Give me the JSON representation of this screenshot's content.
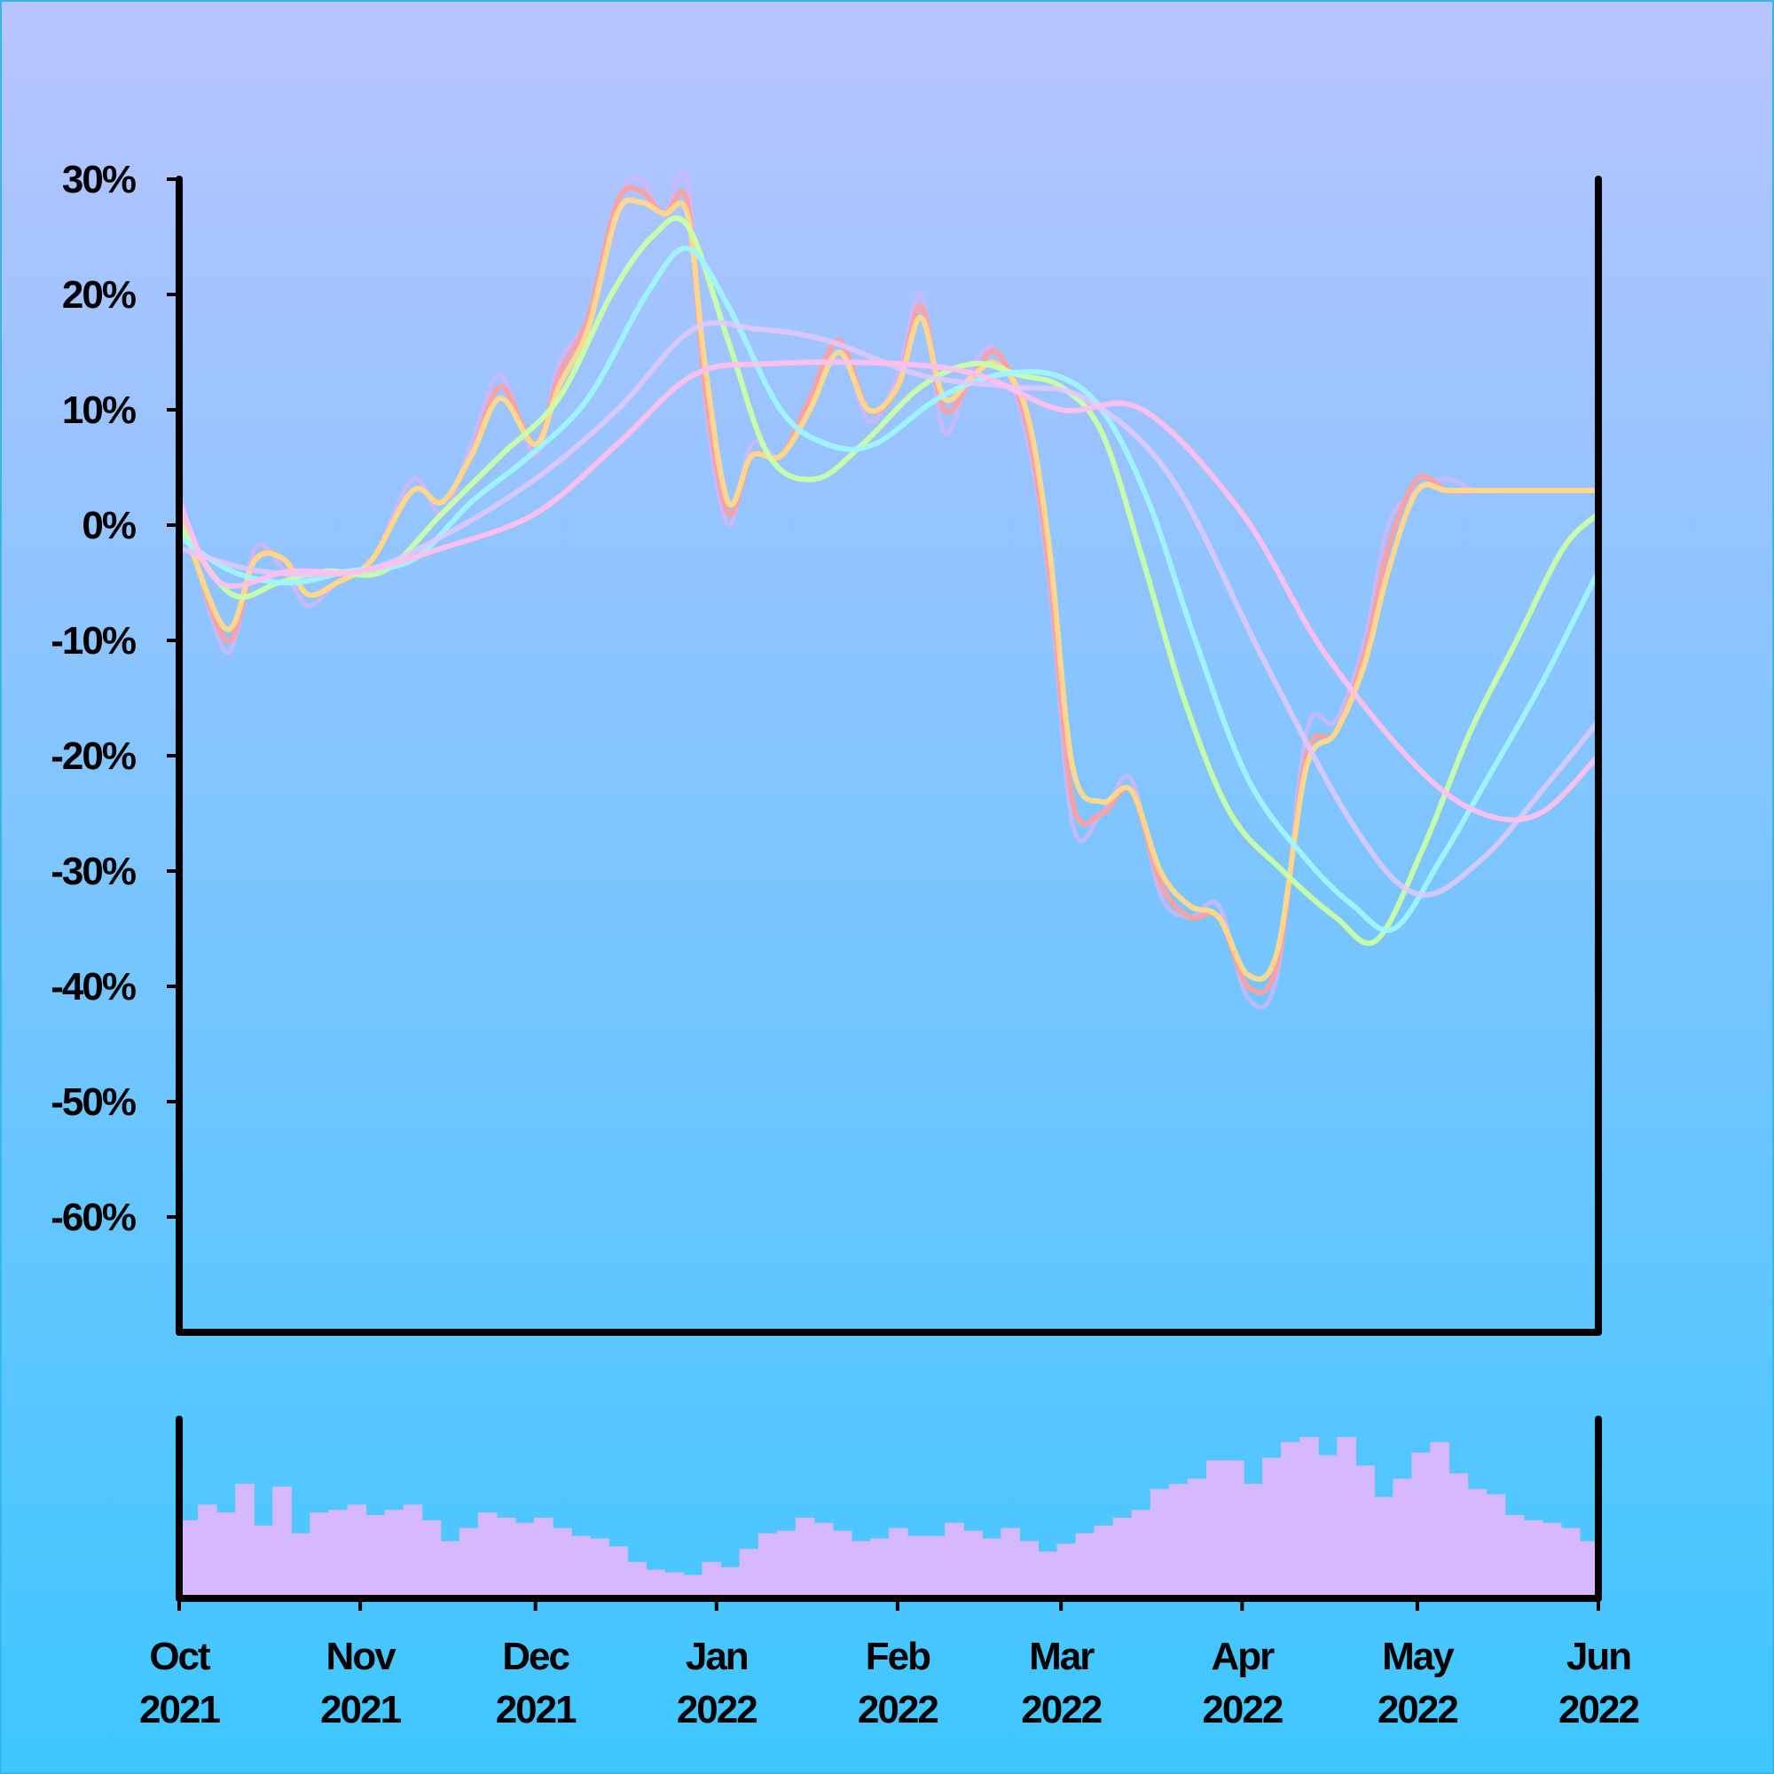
{
  "background": {
    "top_color": "#b8c4ff",
    "bottom_color": "#3ec6ff"
  },
  "chart_data": {
    "type": "line",
    "title": "",
    "xlabel": "",
    "ylabel": "",
    "grid": false,
    "legend": "none",
    "y_ticks": [
      "30%",
      "20%",
      "10%",
      "0%",
      "-10%",
      "-20%",
      "-30%",
      "-40%",
      "-50%",
      "-60%"
    ],
    "y_tick_values": [
      30,
      20,
      10,
      0,
      -10,
      -20,
      -30,
      -40,
      -50,
      -60
    ],
    "ylim": [
      -70,
      30
    ],
    "x_ticks": [
      {
        "date": "2021-10-01",
        "month": "Oct",
        "year": "2021"
      },
      {
        "date": "2021-11-01",
        "month": "Nov",
        "year": "2021"
      },
      {
        "date": "2021-12-01",
        "month": "Dec",
        "year": "2021"
      },
      {
        "date": "2022-01-01",
        "month": "Jan",
        "year": "2022"
      },
      {
        "date": "2022-02-01",
        "month": "Feb",
        "year": "2022"
      },
      {
        "date": "2022-03-01",
        "month": "Mar",
        "year": "2022"
      },
      {
        "date": "2022-04-01",
        "month": "Apr",
        "year": "2022"
      },
      {
        "date": "2022-05-01",
        "month": "May",
        "year": "2022"
      },
      {
        "date": "2022-06-01",
        "month": "Jun",
        "year": "2022"
      }
    ],
    "xlim": [
      "2021-10-01",
      "2022-06-01"
    ],
    "series": [
      {
        "color": "#d8b4ff",
        "opacity": 0.75,
        "width": 5,
        "x": [
          "2021-10-01",
          "2021-10-09",
          "2021-10-14",
          "2021-10-19",
          "2021-10-23",
          "2021-10-28",
          "2021-11-03",
          "2021-11-10",
          "2021-11-15",
          "2021-11-20",
          "2021-11-25",
          "2021-12-01",
          "2021-12-05",
          "2021-12-10",
          "2021-12-15",
          "2021-12-19",
          "2021-12-23",
          "2021-12-27",
          "2021-12-30",
          "2022-01-03",
          "2022-01-07",
          "2022-01-12",
          "2022-01-17",
          "2022-01-22",
          "2022-01-27",
          "2022-02-01",
          "2022-02-05",
          "2022-02-09",
          "2022-02-14",
          "2022-02-18",
          "2022-02-23",
          "2022-02-27",
          "2022-03-03",
          "2022-03-08",
          "2022-03-13",
          "2022-03-18",
          "2022-03-23",
          "2022-03-28",
          "2022-04-02",
          "2022-04-07",
          "2022-04-12",
          "2022-04-17",
          "2022-04-22",
          "2022-04-26",
          "2022-05-01",
          "2022-05-06",
          "2022-05-11",
          "2022-05-16",
          "2022-05-21",
          "2022-05-26",
          "2022-06-01"
        ],
        "y": [
          3,
          -11,
          -2,
          -4,
          -7,
          -5,
          -3,
          4,
          1,
          7,
          13,
          6,
          14,
          18,
          28,
          30,
          27,
          30,
          11,
          0,
          7,
          6,
          11,
          16,
          9,
          13,
          20,
          8,
          14,
          15,
          8,
          -5,
          -26,
          -25,
          -22,
          -32,
          -34,
          -33,
          -41,
          -39,
          -18,
          -17,
          -10,
          0,
          3,
          4,
          3,
          3,
          3,
          3,
          3
        ]
      },
      {
        "color": "#ff9e9e",
        "opacity": 0.9,
        "width": 6,
        "x": [
          "2021-10-01",
          "2021-10-09",
          "2021-10-14",
          "2021-10-19",
          "2021-10-23",
          "2021-10-28",
          "2021-11-03",
          "2021-11-10",
          "2021-11-15",
          "2021-11-20",
          "2021-11-25",
          "2021-12-01",
          "2021-12-05",
          "2021-12-10",
          "2021-12-15",
          "2021-12-19",
          "2021-12-23",
          "2021-12-27",
          "2021-12-30",
          "2022-01-03",
          "2022-01-07",
          "2022-01-12",
          "2022-01-17",
          "2022-01-22",
          "2022-01-27",
          "2022-02-01",
          "2022-02-05",
          "2022-02-09",
          "2022-02-14",
          "2022-02-18",
          "2022-02-23",
          "2022-02-27",
          "2022-03-03",
          "2022-03-08",
          "2022-03-13",
          "2022-03-18",
          "2022-03-23",
          "2022-03-28",
          "2022-04-02",
          "2022-04-07",
          "2022-04-12",
          "2022-04-17",
          "2022-04-22",
          "2022-04-26",
          "2022-05-01",
          "2022-05-06",
          "2022-05-11",
          "2022-05-16",
          "2022-05-21",
          "2022-05-26",
          "2022-06-01"
        ],
        "y": [
          2,
          -10,
          -3,
          -3,
          -6,
          -5,
          -3,
          3,
          2,
          6,
          12,
          7,
          13,
          18,
          28,
          29,
          27,
          28,
          12,
          1,
          6,
          6,
          11,
          16,
          10,
          12,
          19,
          10,
          13,
          15,
          9,
          -4,
          -24,
          -25,
          -23,
          -31,
          -34,
          -34,
          -40,
          -38,
          -20,
          -18,
          -11,
          -2,
          4,
          3,
          3,
          3,
          3,
          3,
          3
        ]
      },
      {
        "color": "#ffd98a",
        "opacity": 0.95,
        "width": 6,
        "x": [
          "2021-10-01",
          "2021-10-09",
          "2021-10-14",
          "2021-10-19",
          "2021-10-23",
          "2021-10-28",
          "2021-11-03",
          "2021-11-10",
          "2021-11-15",
          "2021-11-20",
          "2021-11-25",
          "2021-12-01",
          "2021-12-05",
          "2021-12-10",
          "2021-12-15",
          "2021-12-19",
          "2021-12-23",
          "2021-12-27",
          "2021-12-30",
          "2022-01-03",
          "2022-01-07",
          "2022-01-12",
          "2022-01-17",
          "2022-01-22",
          "2022-01-27",
          "2022-02-01",
          "2022-02-05",
          "2022-02-09",
          "2022-02-14",
          "2022-02-18",
          "2022-02-23",
          "2022-02-27",
          "2022-03-03",
          "2022-03-08",
          "2022-03-13",
          "2022-03-18",
          "2022-03-23",
          "2022-03-28",
          "2022-04-02",
          "2022-04-07",
          "2022-04-12",
          "2022-04-17",
          "2022-04-22",
          "2022-04-26",
          "2022-05-01",
          "2022-05-06",
          "2022-05-11",
          "2022-05-16",
          "2022-05-21",
          "2022-05-26",
          "2022-06-01"
        ],
        "y": [
          1,
          -9,
          -3,
          -3,
          -6,
          -5,
          -3,
          3,
          2,
          6,
          11,
          7,
          12,
          17,
          27,
          28,
          27,
          27,
          14,
          2,
          6,
          6,
          10,
          15,
          10,
          12,
          18,
          11,
          13,
          14,
          10,
          -2,
          -21,
          -24,
          -23,
          -30,
          -33,
          -34,
          -39,
          -37,
          -21,
          -18,
          -12,
          -4,
          3,
          3,
          3,
          3,
          3,
          3,
          3
        ]
      },
      {
        "color": "#c8ffa8",
        "opacity": 0.95,
        "width": 6,
        "x": [
          "2021-10-01",
          "2021-10-10",
          "2021-10-18",
          "2021-10-26",
          "2021-11-05",
          "2021-11-15",
          "2021-11-25",
          "2021-12-05",
          "2021-12-14",
          "2021-12-21",
          "2021-12-27",
          "2022-01-03",
          "2022-01-10",
          "2022-01-18",
          "2022-01-26",
          "2022-02-05",
          "2022-02-14",
          "2022-02-22",
          "2022-03-01",
          "2022-03-08",
          "2022-03-15",
          "2022-03-22",
          "2022-03-30",
          "2022-04-08",
          "2022-04-17",
          "2022-04-24",
          "2022-05-02",
          "2022-05-10",
          "2022-05-18",
          "2022-05-26",
          "2022-06-01"
        ],
        "y": [
          0,
          -6,
          -5,
          -4,
          -4,
          1,
          6,
          11,
          20,
          25,
          26,
          16,
          6,
          4,
          7,
          12,
          14,
          13,
          12,
          8,
          -3,
          -15,
          -25,
          -30,
          -34,
          -36,
          -28,
          -18,
          -10,
          -2,
          1
        ]
      },
      {
        "color": "#9ff5ff",
        "opacity": 0.95,
        "width": 6,
        "x": [
          "2021-10-01",
          "2021-10-10",
          "2021-10-20",
          "2021-10-30",
          "2021-11-10",
          "2021-11-20",
          "2021-11-30",
          "2021-12-10",
          "2021-12-20",
          "2021-12-27",
          "2022-01-03",
          "2022-01-12",
          "2022-01-20",
          "2022-01-28",
          "2022-02-08",
          "2022-02-18",
          "2022-02-28",
          "2022-03-08",
          "2022-03-16",
          "2022-03-24",
          "2022-04-02",
          "2022-04-12",
          "2022-04-20",
          "2022-04-27",
          "2022-05-05",
          "2022-05-13",
          "2022-05-22",
          "2022-06-01"
        ],
        "y": [
          -1,
          -4,
          -5,
          -4,
          -3,
          2,
          6,
          11,
          20,
          24,
          19,
          10,
          7,
          7,
          11,
          13,
          13,
          10,
          2,
          -10,
          -22,
          -29,
          -33,
          -35,
          -29,
          -22,
          -14,
          -4
        ]
      },
      {
        "color": "#e2c8ff",
        "opacity": 0.85,
        "width": 6,
        "x": [
          "2021-10-01",
          "2021-10-15",
          "2021-11-01",
          "2021-11-15",
          "2021-12-01",
          "2021-12-15",
          "2021-12-28",
          "2022-01-08",
          "2022-01-20",
          "2022-02-05",
          "2022-02-20",
          "2022-03-05",
          "2022-03-20",
          "2022-04-05",
          "2022-04-20",
          "2022-05-01",
          "2022-05-12",
          "2022-05-24",
          "2022-06-01"
        ],
        "y": [
          -2,
          -4,
          -4,
          -1,
          4,
          10,
          17,
          17,
          16,
          13,
          12,
          11,
          4,
          -12,
          -26,
          -32,
          -29,
          -22,
          -17
        ]
      },
      {
        "color": "#ffc0ec",
        "opacity": 0.95,
        "width": 6,
        "x": [
          "2021-10-01",
          "2021-10-08",
          "2021-10-20",
          "2021-11-01",
          "2021-11-15",
          "2021-12-01",
          "2021-12-15",
          "2021-12-28",
          "2022-01-10",
          "2022-02-01",
          "2022-02-15",
          "2022-03-01",
          "2022-03-15",
          "2022-04-01",
          "2022-04-15",
          "2022-05-01",
          "2022-05-12",
          "2022-05-22",
          "2022-06-01"
        ],
        "y": [
          2,
          -5,
          -4,
          -4,
          -2,
          1,
          7,
          13,
          14,
          14,
          13,
          10,
          10,
          1,
          -11,
          -21,
          -25,
          -25,
          -20
        ]
      }
    ],
    "volume": {
      "color": "#d6b8ff",
      "values": [
        30,
        30,
        36,
        36,
        33,
        33,
        44,
        44,
        28,
        28,
        43,
        43,
        25,
        25,
        33,
        33,
        34,
        34,
        36,
        36,
        32,
        32,
        34,
        34,
        36,
        36,
        30,
        30,
        22,
        22,
        27,
        27,
        33,
        33,
        31,
        31,
        29,
        29,
        31,
        31,
        27,
        27,
        24,
        24,
        23,
        23,
        20,
        20,
        14,
        14,
        11,
        11,
        10,
        10,
        9,
        9,
        14,
        14,
        12,
        12,
        19,
        19,
        25,
        25,
        26,
        26,
        31,
        31,
        29,
        29,
        26,
        26,
        22,
        22,
        23,
        23,
        27,
        27,
        24,
        24,
        24,
        24,
        29,
        29,
        26,
        26,
        23,
        23,
        27,
        27,
        22,
        22,
        18,
        18,
        21,
        21,
        25,
        25,
        28,
        28,
        31,
        31,
        34,
        34,
        42,
        42,
        44,
        44,
        46,
        46,
        53,
        53,
        53,
        53,
        44,
        44,
        54,
        54,
        60,
        60,
        62,
        62,
        55,
        55,
        62,
        62,
        51,
        51,
        39,
        39,
        46,
        46,
        56,
        56,
        60,
        60,
        48,
        48,
        42,
        42,
        40,
        40,
        32,
        32,
        30,
        30,
        29,
        29,
        27,
        27,
        22,
        22
      ]
    }
  }
}
